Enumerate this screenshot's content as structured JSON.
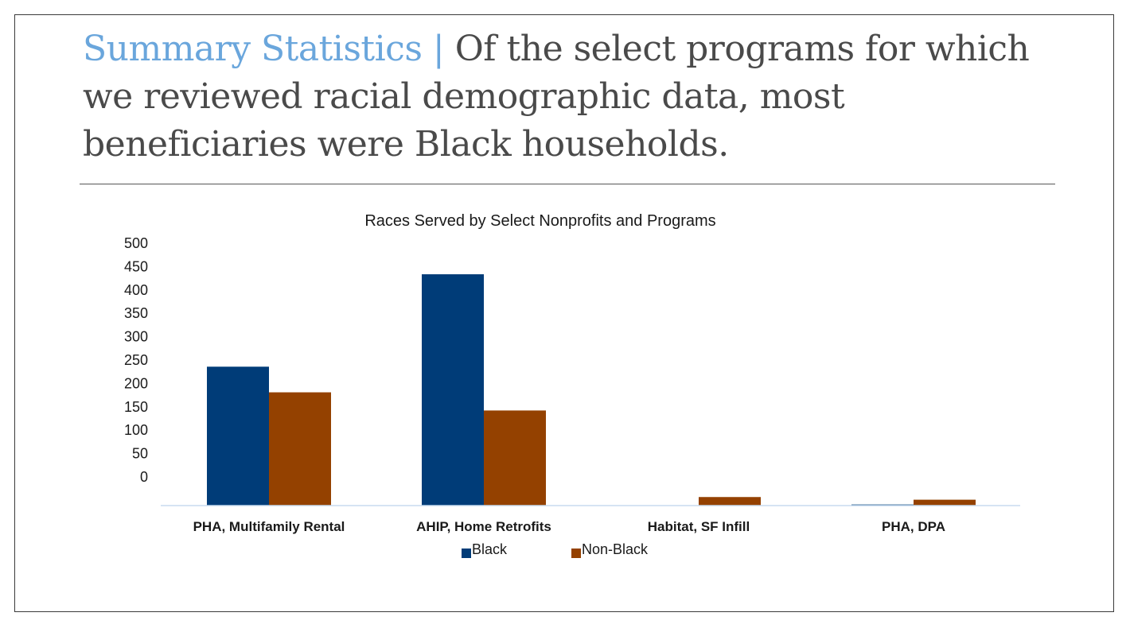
{
  "slide": {
    "title_accent": "Summary Statistics |",
    "title_rest": " Of the select programs for which we reviewed racial demographic data, most beneficiaries were Black households."
  },
  "colors": {
    "Black": "#003c78",
    "Non-Black": "#944100",
    "baseline": "#c8dcef",
    "title_accent": "#6aa6dc"
  },
  "chart_data": {
    "type": "bar",
    "title": "Races Served by Select Nonprofits and Programs",
    "categories": [
      "PHA, Multifamily Rental",
      "AHIP, Home Retrofits",
      "Habitat, SF Infill",
      "PHA, DPA"
    ],
    "series": [
      {
        "name": "Black",
        "values": [
          260,
          433,
          0,
          2
        ]
      },
      {
        "name": "Non-Black",
        "values": [
          212,
          178,
          16,
          11
        ]
      }
    ],
    "y_ticks": [
      500,
      450,
      400,
      350,
      300,
      250,
      200,
      150,
      100,
      50,
      0
    ],
    "ylim": [
      0,
      500
    ],
    "grid": false,
    "legend": "bottom",
    "xlabel": "",
    "ylabel": ""
  }
}
